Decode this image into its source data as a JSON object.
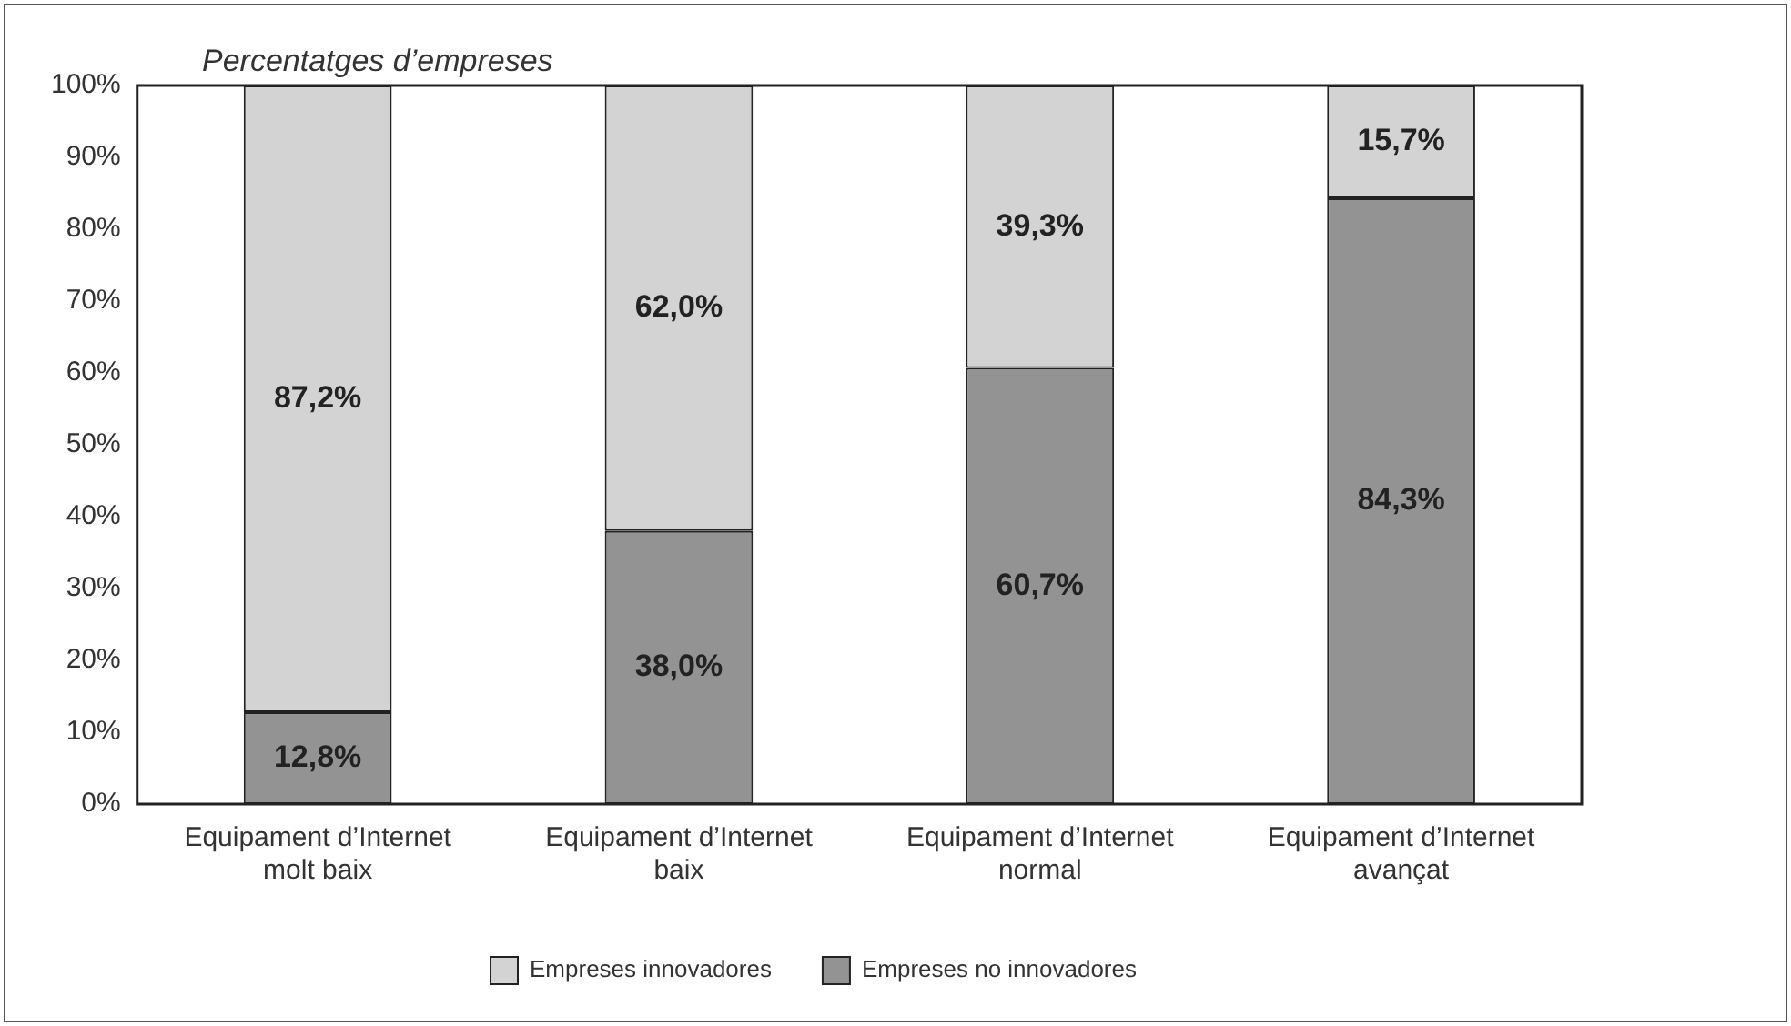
{
  "chart_data": {
    "type": "bar",
    "stacked": true,
    "ylabel": "Percentatges d’empreses",
    "categories": [
      "Equipament d’Internet molt baix",
      "Equipament d’Internet baix",
      "Equipament d’Internet normal",
      "Equipament d’Internet avançat"
    ],
    "series": [
      {
        "name": "Empreses no innovadores",
        "color": "#939393",
        "values": [
          12.8,
          38.0,
          60.7,
          84.3
        ],
        "value_labels": [
          "12,8%",
          "38,0%",
          "60,7%",
          "84,3%"
        ]
      },
      {
        "name": "Empreses innovadores",
        "color": "#d3d3d3",
        "values": [
          87.2,
          62.0,
          39.3,
          15.7
        ],
        "value_labels": [
          "87,2%",
          "62,0%",
          "39,3%",
          "15,7%"
        ]
      }
    ],
    "ylim": [
      0,
      100
    ],
    "yticks": [
      {
        "value": 0,
        "label": "0%"
      },
      {
        "value": 10,
        "label": "10%"
      },
      {
        "value": 20,
        "label": "20%"
      },
      {
        "value": 30,
        "label": "30%"
      },
      {
        "value": 40,
        "label": "40%"
      },
      {
        "value": 50,
        "label": "50%"
      },
      {
        "value": 60,
        "label": "60%"
      },
      {
        "value": 70,
        "label": "70%"
      },
      {
        "value": 80,
        "label": "80%"
      },
      {
        "value": 90,
        "label": "90%"
      },
      {
        "value": 100,
        "label": "100%"
      }
    ],
    "grid": false,
    "legend": "bottom"
  }
}
